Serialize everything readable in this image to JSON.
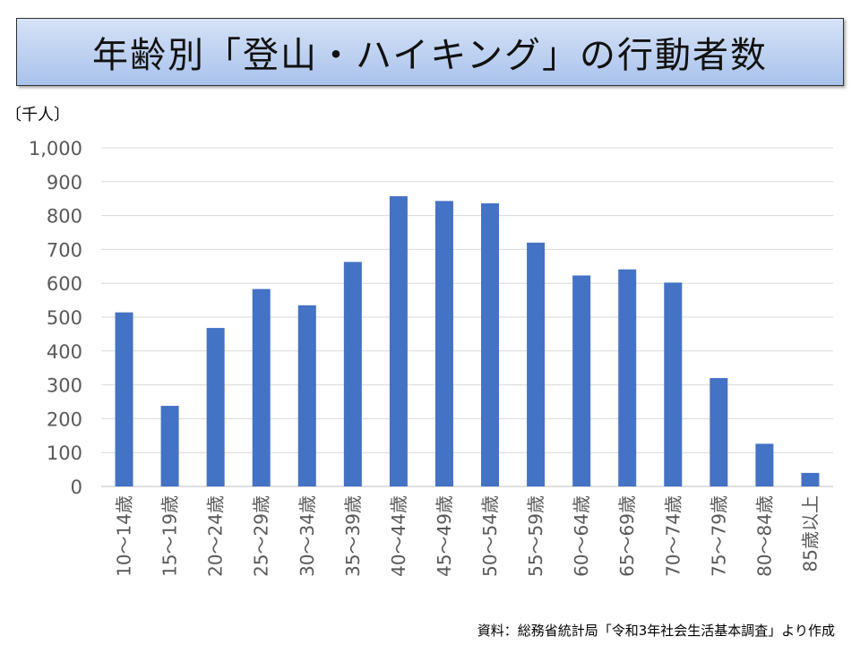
{
  "title": "年齢別「登山・ハイキング」の行動者数",
  "source": "資料：総務省統計局「令和3年社会生活基本調査」より作成",
  "colors": {
    "bar": "#4472c4",
    "grid": "#d9d9d9",
    "text": "#595959"
  },
  "chart_data": {
    "type": "bar",
    "unit_label": "〔千人〕",
    "categories": [
      "10～14歳",
      "15～19歳",
      "20～24歳",
      "25～29歳",
      "30～34歳",
      "35～39歳",
      "40～44歳",
      "45～49歳",
      "50～54歳",
      "55～59歳",
      "60～64歳",
      "65～69歳",
      "70～74歳",
      "75～79歳",
      "80～84歳",
      "85歳以上"
    ],
    "values": [
      514,
      238,
      468,
      583,
      535,
      663,
      857,
      843,
      836,
      720,
      623,
      641,
      602,
      320,
      126,
      40
    ],
    "ylim": [
      0,
      1000
    ],
    "yticks": [
      0,
      100,
      200,
      300,
      400,
      500,
      600,
      700,
      800,
      900,
      1000
    ],
    "ytick_labels": [
      "0",
      "100",
      "200",
      "300",
      "400",
      "500",
      "600",
      "700",
      "800",
      "900",
      "1,000"
    ],
    "grid": true,
    "legend": "none"
  }
}
